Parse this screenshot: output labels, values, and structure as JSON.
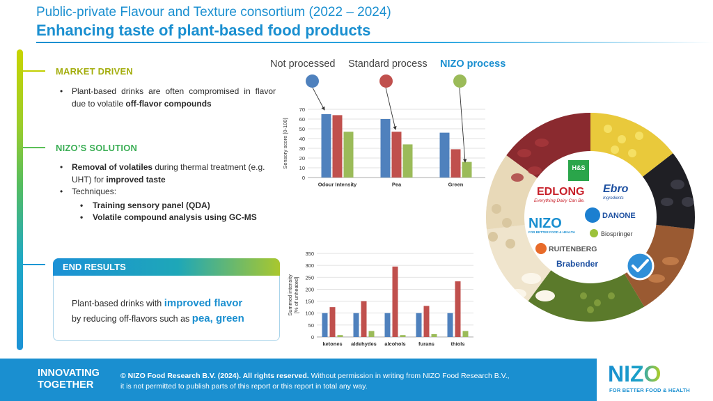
{
  "header": {
    "supertitle": "Public-private Flavour and Texture consortium (2022 – 2024)",
    "title": "Enhancing taste of plant-based food products"
  },
  "market": {
    "heading": "MARKET DRIVEN",
    "bullet_pre": "Plant-based drinks are often compromised in flavor due to volatile ",
    "bullet_bold": "off-flavor compounds"
  },
  "solution": {
    "heading": "NIZO’S SOLUTION",
    "b1_bold": "Removal of volatiles",
    "b1_mid": " during thermal treatment (e.g. UHT) for ",
    "b1_bold2": "improved taste",
    "b2": "Techniques:",
    "sub1": "Training sensory panel (QDA)",
    "sub2": "Volatile compound analysis using GC-MS"
  },
  "results": {
    "heading": "END RESULTS",
    "line1": "Plant-based drinks with ",
    "line1_hl": "improved flavor",
    "line2": "by reducing off-flavors such as ",
    "line2_hl": "pea, green"
  },
  "legend": {
    "not_processed": "Not processed",
    "standard": "Standard process",
    "nizo": "NIZO process"
  },
  "colors": {
    "blue": "#4f81bd",
    "red": "#c0504d",
    "green": "#9bbb59",
    "accent": "#1a8fd0"
  },
  "chart_data": [
    {
      "type": "bar",
      "title": "",
      "ylabel": "Sensory score [0-100]",
      "xlabel": "",
      "categories": [
        "Odour Intensity",
        "Pea",
        "Green"
      ],
      "series": [
        {
          "name": "Not processed",
          "values": [
            65,
            60,
            46
          ]
        },
        {
          "name": "Standard process",
          "values": [
            64,
            47,
            29
          ]
        },
        {
          "name": "NIZO process",
          "values": [
            47,
            34,
            16
          ]
        }
      ],
      "ylim": [
        0,
        70
      ],
      "yticks": [
        0,
        10,
        20,
        30,
        40,
        50,
        60,
        70
      ],
      "grid": true
    },
    {
      "type": "bar",
      "title": "",
      "ylabel": "Summed intensity [% of unheated]",
      "xlabel": "",
      "categories": [
        "ketones",
        "aldehydes",
        "alcohols",
        "furans",
        "thiols"
      ],
      "series": [
        {
          "name": "Not processed",
          "values": [
            100,
            100,
            100,
            100,
            100
          ]
        },
        {
          "name": "Standard process",
          "values": [
            125,
            150,
            295,
            130,
            233
          ]
        },
        {
          "name": "NIZO process",
          "values": [
            8,
            25,
            8,
            12,
            25
          ]
        }
      ],
      "ylim": [
        0,
        350
      ],
      "yticks": [
        0,
        50,
        100,
        150,
        200,
        250,
        300,
        350
      ],
      "grid": true
    }
  ],
  "partners": {
    "hs": "H&S",
    "edlong": "EDLONG",
    "edlong_tag": "Everything Dairy Can Be.",
    "ebro": "Ebro",
    "ebro_tag": "Ingredients",
    "nizo": "NIZO",
    "nizo_tag": "FOR BETTER FOOD & HEALTH",
    "danone": "DANONE",
    "biospringer": "Biospringer",
    "ruitenberg": "RUITENBERG",
    "brabender": "Brabender"
  },
  "footer": {
    "line1": "INNOVATING",
    "line2": "TOGETHER",
    "copy_bold": "© NIZO Food Research B.V. (2024). All rights reserved.",
    "copy_rest": " Without permission in writing from NIZO Food Research B.V.,",
    "copy_line2": "it is not permitted to publish parts of this report or this report in total any way.",
    "logo": "NIZO",
    "tagline": "FOR BETTER FOOD & HEALTH"
  }
}
